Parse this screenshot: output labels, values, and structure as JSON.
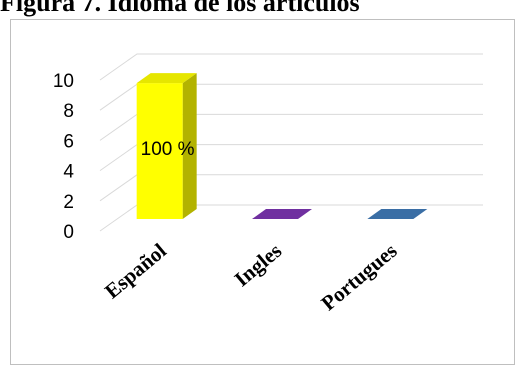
{
  "figure": {
    "title": "Figura 7. Idioma de los artículos"
  },
  "chart_data": {
    "type": "bar",
    "title": "",
    "xlabel": "",
    "ylabel": "",
    "categories": [
      "Español",
      "Ingles",
      "Portugues"
    ],
    "series": [
      {
        "values": [
          9,
          0,
          0
        ]
      }
    ],
    "ylim": [
      0,
      10
    ],
    "yticks": [
      "0",
      "2",
      "4",
      "6",
      "8",
      "10"
    ],
    "data_labels": [
      "100 %",
      "",
      ""
    ],
    "colors": [
      "#ffff00",
      "#7030a0",
      "#3a6ea5"
    ],
    "grid": true,
    "legend": "none",
    "style": "3d-column"
  }
}
